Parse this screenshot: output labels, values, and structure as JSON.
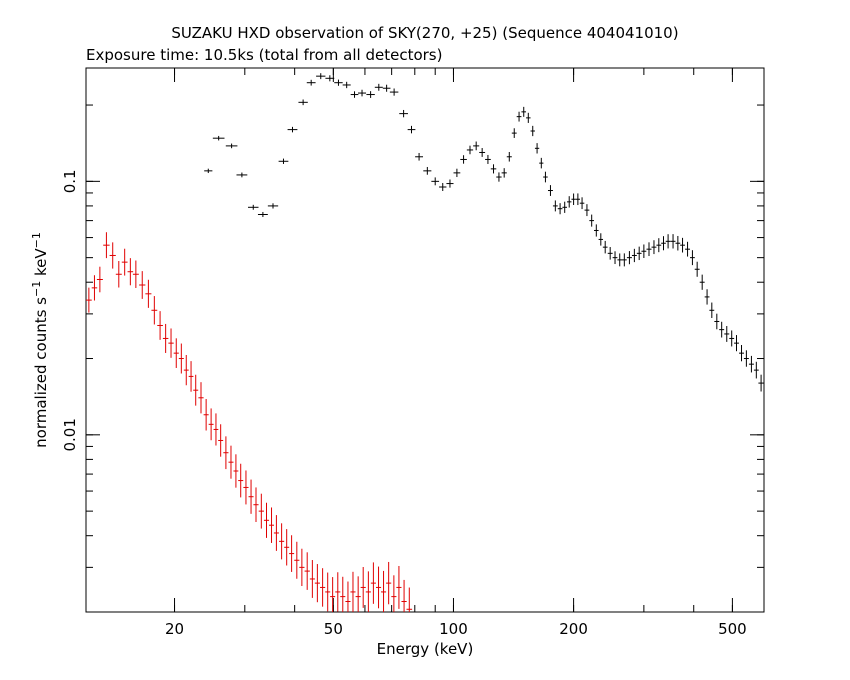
{
  "chart_data": {
    "type": "scatter",
    "title": "SUZAKU HXD observation of SKY(270, +25) (Sequence 404041010)",
    "subtitle": "Exposure time: 10.5ks (total from all detectors)",
    "xlabel": "Energy (keV)",
    "ylabel": "normalized counts s-1 keV-1",
    "x_scale": "log",
    "y_scale": "log",
    "xlim": [
      12,
      600
    ],
    "ylim": [
      0.002,
      0.28
    ],
    "x_ticks": [
      {
        "value": 20,
        "label": "20"
      },
      {
        "value": 50,
        "label": "50"
      },
      {
        "value": 100,
        "label": "100"
      },
      {
        "value": 200,
        "label": "200"
      },
      {
        "value": 500,
        "label": "500"
      }
    ],
    "y_ticks": [
      {
        "value": 0.01,
        "label": "0.01"
      },
      {
        "value": 0.1,
        "label": "0.1"
      }
    ],
    "grid": false,
    "series": [
      {
        "color": "#000000",
        "points": [
          [
            24.3,
            0.11
          ],
          [
            25.8,
            0.148
          ],
          [
            27.8,
            0.138
          ],
          [
            29.5,
            0.106
          ],
          [
            31.5,
            0.079
          ],
          [
            33.3,
            0.074
          ],
          [
            35.3,
            0.08
          ],
          [
            37.5,
            0.12
          ],
          [
            39.5,
            0.16
          ],
          [
            42.0,
            0.205
          ],
          [
            44.0,
            0.245
          ],
          [
            46.5,
            0.26
          ],
          [
            49.0,
            0.255
          ],
          [
            51.5,
            0.245
          ],
          [
            54.0,
            0.24
          ],
          [
            56.5,
            0.22
          ],
          [
            59.0,
            0.223
          ],
          [
            62.0,
            0.22
          ],
          [
            65.0,
            0.235
          ],
          [
            68.0,
            0.233
          ],
          [
            71.0,
            0.225
          ],
          [
            75.0,
            0.185
          ],
          [
            78.5,
            0.16
          ],
          [
            82.0,
            0.125
          ],
          [
            86.0,
            0.11
          ],
          [
            90.0,
            0.1
          ],
          [
            94.0,
            0.095
          ],
          [
            98.0,
            0.098
          ],
          [
            102.0,
            0.108
          ],
          [
            106.0,
            0.122
          ],
          [
            110.0,
            0.133
          ],
          [
            114.0,
            0.138
          ],
          [
            118.0,
            0.13
          ],
          [
            122.0,
            0.122
          ],
          [
            126.0,
            0.112
          ],
          [
            130.0,
            0.104
          ],
          [
            134.0,
            0.108
          ],
          [
            138.0,
            0.125
          ],
          [
            142.0,
            0.155
          ],
          [
            146.0,
            0.18
          ],
          [
            150.0,
            0.188
          ],
          [
            154.0,
            0.178
          ],
          [
            158.0,
            0.158
          ],
          [
            162.0,
            0.135
          ],
          [
            166.0,
            0.118
          ],
          [
            170.0,
            0.104
          ],
          [
            175.0,
            0.092
          ],
          [
            180.0,
            0.08
          ],
          [
            185.0,
            0.078
          ],
          [
            190.0,
            0.079
          ],
          [
            195.0,
            0.083
          ],
          [
            200.0,
            0.085
          ],
          [
            205.0,
            0.085
          ],
          [
            210.0,
            0.082
          ],
          [
            216.0,
            0.077
          ],
          [
            222.0,
            0.07
          ],
          [
            228.0,
            0.064
          ],
          [
            234.0,
            0.059
          ],
          [
            240.0,
            0.055
          ],
          [
            247.0,
            0.052
          ],
          [
            254.0,
            0.05
          ],
          [
            261.0,
            0.049
          ],
          [
            268.0,
            0.049
          ],
          [
            276.0,
            0.05
          ],
          [
            284.0,
            0.051
          ],
          [
            292.0,
            0.052
          ],
          [
            300.0,
            0.053
          ],
          [
            309.0,
            0.054
          ],
          [
            318.0,
            0.055
          ],
          [
            327.0,
            0.056
          ],
          [
            336.0,
            0.057
          ],
          [
            345.0,
            0.058
          ],
          [
            355.0,
            0.058
          ],
          [
            365.0,
            0.057
          ],
          [
            375.0,
            0.056
          ],
          [
            386.0,
            0.054
          ],
          [
            397.0,
            0.05
          ],
          [
            408.0,
            0.045
          ],
          [
            420.0,
            0.04
          ],
          [
            432.0,
            0.035
          ],
          [
            444.0,
            0.031
          ],
          [
            457.0,
            0.028
          ],
          [
            470.0,
            0.026
          ],
          [
            484.0,
            0.025
          ],
          [
            498.0,
            0.024
          ],
          [
            512.0,
            0.023
          ],
          [
            527.0,
            0.021
          ],
          [
            542.0,
            0.02
          ],
          [
            558.0,
            0.019
          ],
          [
            574.0,
            0.018
          ],
          [
            590.0,
            0.016
          ]
        ]
      },
      {
        "color": "#e00000",
        "points": [
          [
            12.2,
            0.034
          ],
          [
            12.6,
            0.038
          ],
          [
            13.0,
            0.041
          ],
          [
            13.5,
            0.056
          ],
          [
            14.0,
            0.051
          ],
          [
            14.5,
            0.043
          ],
          [
            15.0,
            0.048
          ],
          [
            15.5,
            0.044
          ],
          [
            16.0,
            0.043
          ],
          [
            16.6,
            0.039
          ],
          [
            17.2,
            0.036
          ],
          [
            17.8,
            0.031
          ],
          [
            18.4,
            0.027
          ],
          [
            19.0,
            0.024
          ],
          [
            19.6,
            0.023
          ],
          [
            20.2,
            0.021
          ],
          [
            20.8,
            0.02
          ],
          [
            21.4,
            0.018
          ],
          [
            22.0,
            0.017
          ],
          [
            22.6,
            0.015
          ],
          [
            23.3,
            0.014
          ],
          [
            24.0,
            0.012
          ],
          [
            24.7,
            0.011
          ],
          [
            25.4,
            0.0105
          ],
          [
            26.1,
            0.0095
          ],
          [
            26.9,
            0.0085
          ],
          [
            27.7,
            0.0078
          ],
          [
            28.5,
            0.0072
          ],
          [
            29.3,
            0.0066
          ],
          [
            30.2,
            0.0062
          ],
          [
            31.1,
            0.0057
          ],
          [
            32.0,
            0.0053
          ],
          [
            33.0,
            0.005
          ],
          [
            34.0,
            0.0046
          ],
          [
            35.0,
            0.0044
          ],
          [
            36.0,
            0.0041
          ],
          [
            37.1,
            0.0038
          ],
          [
            38.2,
            0.0036
          ],
          [
            39.3,
            0.0034
          ],
          [
            40.5,
            0.0032
          ],
          [
            41.7,
            0.003
          ],
          [
            43.0,
            0.0029
          ],
          [
            44.3,
            0.0027
          ],
          [
            45.6,
            0.0026
          ],
          [
            47.0,
            0.0025
          ],
          [
            48.4,
            0.0024
          ],
          [
            49.8,
            0.0023
          ],
          [
            51.3,
            0.0024
          ],
          [
            52.8,
            0.0023
          ],
          [
            54.4,
            0.0022
          ],
          [
            56.0,
            0.0024
          ],
          [
            57.7,
            0.0023
          ],
          [
            59.4,
            0.0025
          ],
          [
            61.2,
            0.0024
          ],
          [
            63.0,
            0.0026
          ],
          [
            64.9,
            0.0025
          ],
          [
            66.8,
            0.0024
          ],
          [
            68.8,
            0.0026
          ],
          [
            70.9,
            0.0023
          ],
          [
            73.0,
            0.0025
          ],
          [
            75.2,
            0.0022
          ],
          [
            77.5,
            0.00205
          ]
        ]
      }
    ]
  }
}
